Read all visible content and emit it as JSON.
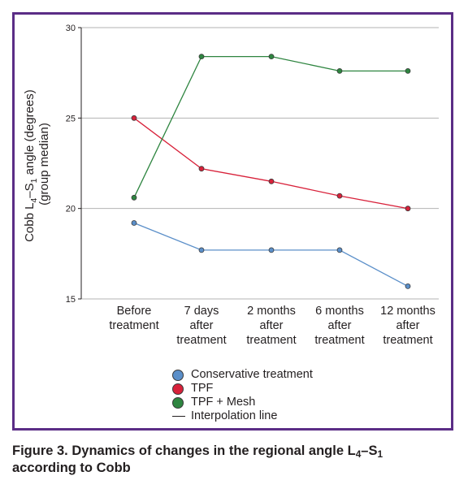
{
  "chart_data": {
    "type": "line",
    "categories": [
      [
        "Before",
        "treatment"
      ],
      [
        "7 days",
        "after",
        "treatment"
      ],
      [
        "2 months",
        "after",
        "treatment"
      ],
      [
        "6 months",
        "after",
        "treatment"
      ],
      [
        "12 months",
        "after",
        "treatment"
      ]
    ],
    "ylabel": {
      "line1_prefix": "Cobb L",
      "line1_sub1": "4",
      "line1_mid": "–S",
      "line1_sub2": "1",
      "line1_suffix": " angle (degrees)",
      "line2": "(group median)"
    },
    "ylim": [
      15,
      30
    ],
    "yticks": [
      15,
      20,
      25,
      30
    ],
    "grid": true,
    "series": [
      {
        "name": "Conservative treatment",
        "color": "#5b8fc9",
        "values": [
          19.2,
          17.7,
          17.7,
          17.7,
          15.7
        ]
      },
      {
        "name": "TPF",
        "color": "#d8213a",
        "values": [
          25.0,
          22.2,
          21.5,
          20.7,
          20.0
        ]
      },
      {
        "name": "TPF + Mesh",
        "color": "#2e8540",
        "values": [
          20.6,
          28.4,
          28.4,
          27.6,
          27.6
        ]
      }
    ],
    "legend": {
      "position": "bottom",
      "interpolation_label": "Interpolation line"
    }
  },
  "caption": {
    "prefix": "Figure 3. Dynamics of changes in the regional angle L",
    "sub1": "4",
    "mid": "–S",
    "sub2": "1",
    "line2": "according to Cobb"
  }
}
